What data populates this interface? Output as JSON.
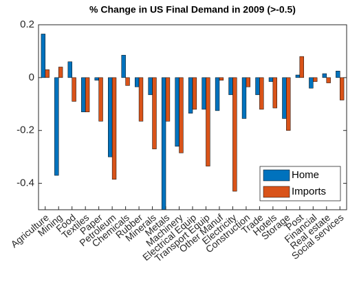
{
  "chart_data": {
    "type": "bar",
    "title": "% Change in US Final Demand in 2009 (>-0.5)",
    "categories": [
      "Agriculture",
      "Mining",
      "Food",
      "Textiles",
      "Paper",
      "Petroleum",
      "Chemicals",
      "Rubber",
      "Minerals",
      "Metals",
      "Machinery",
      "Electrical Equip",
      "Transport Equip",
      "Other Manuf",
      "Electricity",
      "Construction",
      "Trade",
      "Hotels",
      "Storage",
      "Post",
      "Financial",
      "Real estate",
      "Social services"
    ],
    "series": [
      {
        "name": "Home",
        "color": "#0072BD",
        "values": [
          0.165,
          -0.37,
          0.06,
          -0.13,
          -0.01,
          -0.3,
          0.085,
          -0.035,
          -0.065,
          -0.5,
          -0.26,
          -0.135,
          -0.12,
          -0.125,
          -0.065,
          -0.155,
          -0.065,
          -0.015,
          -0.155,
          0.01,
          -0.04,
          0.015,
          0.025
        ]
      },
      {
        "name": "Imports",
        "color": "#D95319",
        "values": [
          0.03,
          0.04,
          -0.09,
          -0.13,
          -0.165,
          -0.385,
          -0.03,
          -0.165,
          -0.27,
          -0.165,
          -0.285,
          -0.12,
          -0.335,
          -0.01,
          -0.43,
          -0.035,
          -0.12,
          -0.115,
          -0.2,
          0.08,
          -0.015,
          -0.02,
          -0.085
        ]
      }
    ],
    "ylim": [
      -0.5,
      0.2
    ],
    "yticks": [
      -0.4,
      -0.2,
      0,
      0.2
    ],
    "legend": "southeast"
  }
}
